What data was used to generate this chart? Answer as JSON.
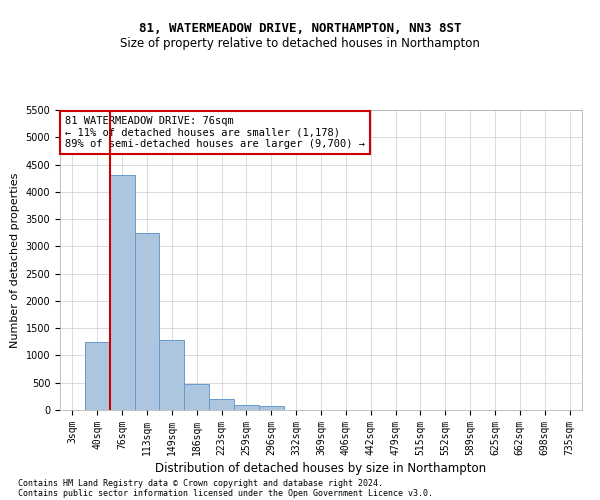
{
  "title1": "81, WATERMEADOW DRIVE, NORTHAMPTON, NN3 8ST",
  "title2": "Size of property relative to detached houses in Northampton",
  "xlabel": "Distribution of detached houses by size in Northampton",
  "ylabel": "Number of detached properties",
  "footnote1": "Contains HM Land Registry data © Crown copyright and database right 2024.",
  "footnote2": "Contains public sector information licensed under the Open Government Licence v3.0.",
  "bar_labels": [
    "3sqm",
    "40sqm",
    "76sqm",
    "113sqm",
    "149sqm",
    "186sqm",
    "223sqm",
    "259sqm",
    "296sqm",
    "332sqm",
    "369sqm",
    "406sqm",
    "442sqm",
    "479sqm",
    "515sqm",
    "552sqm",
    "589sqm",
    "625sqm",
    "662sqm",
    "698sqm",
    "735sqm"
  ],
  "bar_values": [
    0,
    1250,
    4300,
    3250,
    1280,
    480,
    210,
    100,
    70,
    0,
    0,
    0,
    0,
    0,
    0,
    0,
    0,
    0,
    0,
    0,
    0
  ],
  "bar_color": "#adc6e0",
  "bar_edgecolor": "#6699cc",
  "ylim": [
    0,
    5500
  ],
  "yticks": [
    0,
    500,
    1000,
    1500,
    2000,
    2500,
    3000,
    3500,
    4000,
    4500,
    5000,
    5500
  ],
  "annotation_line1": "81 WATERMEADOW DRIVE: 76sqm",
  "annotation_line2": "← 11% of detached houses are smaller (1,178)",
  "annotation_line3": "89% of semi-detached houses are larger (9,700) →",
  "annotation_box_color": "#ffffff",
  "annotation_box_edgecolor": "#cc0000",
  "vline_color": "#cc0000",
  "background_color": "#ffffff",
  "grid_color": "#c8cfd8",
  "title1_fontsize": 9,
  "title2_fontsize": 8.5,
  "ylabel_fontsize": 8,
  "xlabel_fontsize": 8.5,
  "footnote_fontsize": 6,
  "tick_fontsize": 7,
  "annot_fontsize": 7.5
}
